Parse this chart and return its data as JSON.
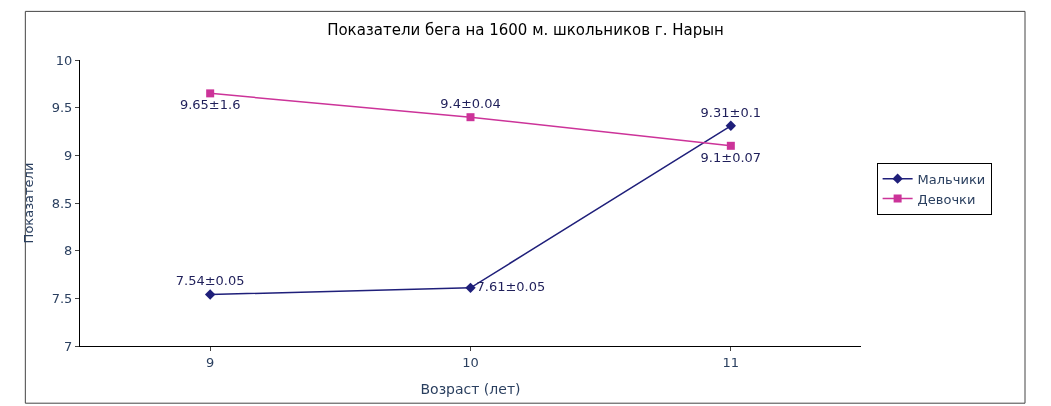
{
  "chart_data": {
    "type": "line",
    "title": "Показатели бега на 1600 м. школьников г. Нарын",
    "xlabel": "Возраст (лет)",
    "ylabel": "Показатели",
    "categories": [
      "9",
      "10",
      "11"
    ],
    "series": [
      {
        "name": "Мальчики",
        "color": "#1f1f7a",
        "marker": "diamond",
        "values": [
          7.54,
          7.61,
          9.31
        ],
        "value_labels": [
          "7.54±0.05",
          "7.61±0.05",
          "9.31±0.1"
        ]
      },
      {
        "name": "Девочки",
        "color": "#cc3399",
        "marker": "square",
        "values": [
          9.65,
          9.4,
          9.1
        ],
        "value_labels": [
          "9.65±1.6",
          "9.4±0.04",
          "9.1±0.07"
        ]
      }
    ],
    "ylim": [
      7,
      10
    ],
    "yticks": [
      7,
      7.5,
      8,
      8.5,
      9,
      9.5,
      10
    ],
    "grid": false,
    "legend": "right"
  }
}
